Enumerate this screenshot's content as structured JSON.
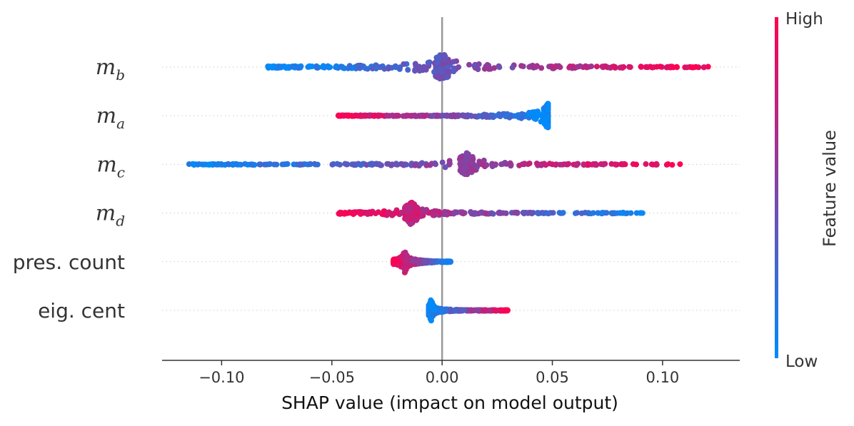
{
  "chart_data": {
    "type": "scatter",
    "subtype": "shap-beeswarm",
    "title": "",
    "xlabel": "SHAP value (impact on model output)",
    "ylabel": "",
    "xlim": [
      -0.127,
      0.135
    ],
    "xticks": [
      -0.1,
      -0.05,
      0.0,
      0.05,
      0.1
    ],
    "xtick_labels": [
      "−0.10",
      "−0.05",
      "0.00",
      "0.05",
      "0.10"
    ],
    "zero_line": 0.0,
    "grid": false,
    "colorbar": {
      "title": "Feature value",
      "high_label": "High",
      "low_label": "Low",
      "low_color": "#008bfb",
      "high_color": "#ff0052",
      "placement": "right"
    },
    "features": [
      {
        "name": "m",
        "sub": "b",
        "range": [
          -0.079,
          0.121
        ],
        "mode": 0.0,
        "mode_height": 0.9,
        "mode_width": 0.003,
        "spread": 0.3,
        "color_trend": "increasing"
      },
      {
        "name": "m",
        "sub": "a",
        "range": [
          -0.047,
          0.048
        ],
        "mode": 0.048,
        "mode_height": 0.75,
        "mode_width": 0.002,
        "spread": 0.35,
        "color_trend": "decreasing"
      },
      {
        "name": "m",
        "sub": "c",
        "range": [
          -0.115,
          0.112
        ],
        "mode": 0.011,
        "mode_height": 0.82,
        "mode_width": 0.003,
        "spread": 0.15,
        "color_trend": "increasing"
      },
      {
        "name": "m",
        "sub": "d",
        "range": [
          -0.047,
          0.092
        ],
        "mode": -0.014,
        "mode_height": 0.8,
        "mode_width": 0.003,
        "spread": 0.2,
        "color_trend": "decreasing"
      },
      {
        "name": "pres. count",
        "sub": "",
        "range": [
          -0.022,
          0.004
        ],
        "mode": -0.017,
        "mode_height": 0.7,
        "mode_width": 0.008,
        "spread": 0.45,
        "color_trend": "decreasing"
      },
      {
        "name": "eig. cent",
        "sub": "",
        "range": [
          -0.006,
          0.03
        ],
        "mode": -0.005,
        "mode_height": 0.78,
        "mode_width": 0.002,
        "spread": 0.22,
        "color_trend": "increasing"
      }
    ]
  }
}
